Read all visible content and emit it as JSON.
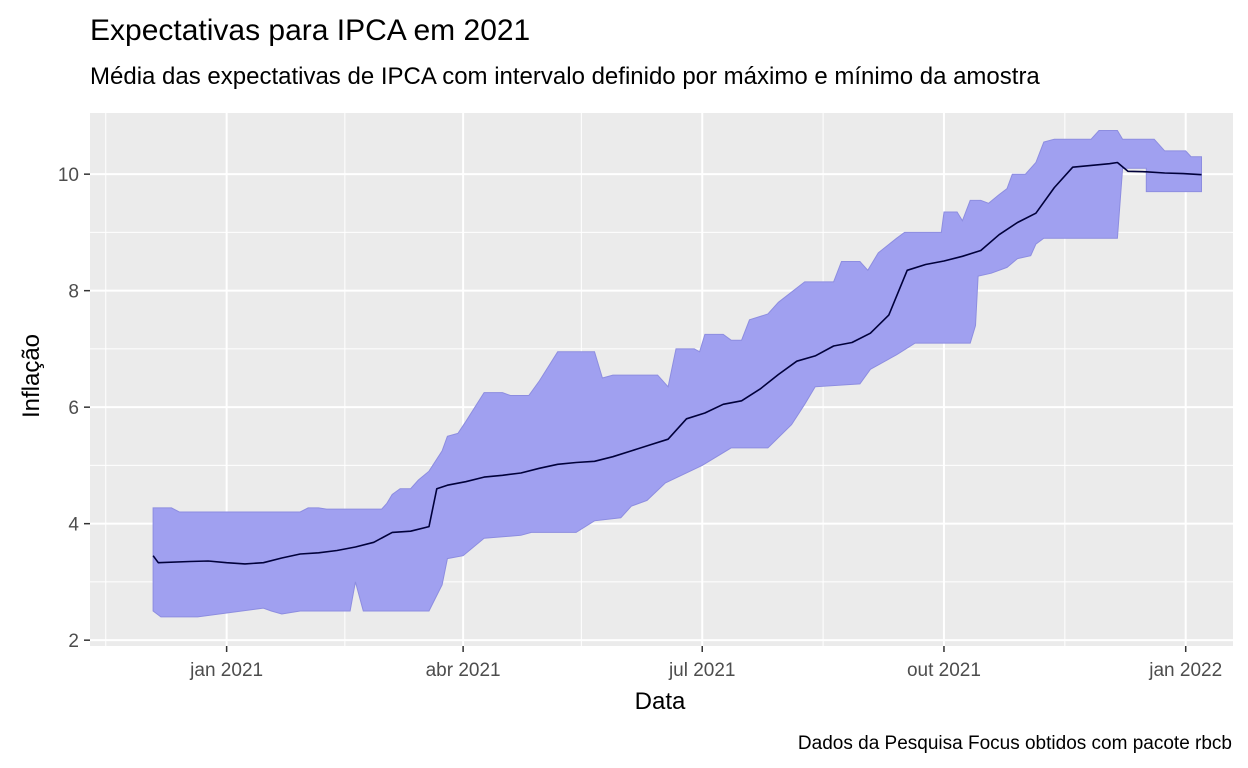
{
  "chart_data": {
    "type": "area",
    "title": "Expectativas para IPCA em 2021",
    "subtitle": "Média das expectativas de IPCA com intervalo definido por máximo e mínimo da amostra",
    "caption": "Dados da Pesquisa Focus obtidos com pacote rbcb",
    "xlabel": "Data",
    "ylabel": "Inflação",
    "xlim": [
      "2020-11-10",
      "2022-01-19"
    ],
    "ylim": [
      1.9,
      11.05
    ],
    "x_ticks": [
      {
        "date": "2021-01-01",
        "label": "jan 2021"
      },
      {
        "date": "2021-04-01",
        "label": "abr 2021"
      },
      {
        "date": "2021-07-01",
        "label": "jul 2021"
      },
      {
        "date": "2021-10-01",
        "label": "out 2021"
      },
      {
        "date": "2022-01-01",
        "label": "jan 2022"
      }
    ],
    "x_minor_ticks": [
      "2020-11-16",
      "2021-02-15",
      "2021-05-16",
      "2021-08-16",
      "2021-11-16"
    ],
    "y_ticks": [
      2,
      4,
      6,
      8,
      10
    ],
    "y_minor_ticks": [
      3,
      5,
      7,
      9
    ],
    "grid": true,
    "colors": {
      "ribbon_fill": "#a0a0f0",
      "ribbon_stroke": "#8d8de0",
      "mean_line": "#00003a",
      "panel": "#ebebeb",
      "grid": "#ffffff"
    },
    "series": [
      {
        "role": "ribbon",
        "upper": [
          [
            "2020-12-04",
            4.27
          ],
          [
            "2020-12-11",
            4.27
          ],
          [
            "2020-12-14",
            4.2
          ],
          [
            "2020-12-18",
            4.2
          ],
          [
            "2021-01-29",
            4.2
          ],
          [
            "2021-02-01",
            4.27
          ],
          [
            "2021-02-05",
            4.27
          ],
          [
            "2021-02-08",
            4.25
          ],
          [
            "2021-03-01",
            4.25
          ],
          [
            "2021-03-03",
            4.35
          ],
          [
            "2021-03-05",
            4.5
          ],
          [
            "2021-03-08",
            4.6
          ],
          [
            "2021-03-12",
            4.6
          ],
          [
            "2021-03-15",
            4.75
          ],
          [
            "2021-03-19",
            4.9
          ],
          [
            "2021-03-24",
            5.25
          ],
          [
            "2021-03-26",
            5.5
          ],
          [
            "2021-03-30",
            5.55
          ],
          [
            "2021-04-02",
            5.75
          ],
          [
            "2021-04-09",
            6.25
          ],
          [
            "2021-04-16",
            6.25
          ],
          [
            "2021-04-19",
            6.2
          ],
          [
            "2021-04-26",
            6.2
          ],
          [
            "2021-04-30",
            6.45
          ],
          [
            "2021-05-07",
            6.95
          ],
          [
            "2021-05-21",
            6.95
          ],
          [
            "2021-05-24",
            6.5
          ],
          [
            "2021-05-28",
            6.55
          ],
          [
            "2021-06-14",
            6.55
          ],
          [
            "2021-06-18",
            6.35
          ],
          [
            "2021-06-21",
            7.0
          ],
          [
            "2021-06-28",
            7.0
          ],
          [
            "2021-06-30",
            6.95
          ],
          [
            "2021-07-02",
            7.25
          ],
          [
            "2021-07-09",
            7.25
          ],
          [
            "2021-07-12",
            7.15
          ],
          [
            "2021-07-16",
            7.15
          ],
          [
            "2021-07-19",
            7.5
          ],
          [
            "2021-07-26",
            7.6
          ],
          [
            "2021-07-30",
            7.8
          ],
          [
            "2021-08-09",
            8.15
          ],
          [
            "2021-08-20",
            8.15
          ],
          [
            "2021-08-23",
            8.5
          ],
          [
            "2021-08-30",
            8.5
          ],
          [
            "2021-09-02",
            8.35
          ],
          [
            "2021-09-06",
            8.65
          ],
          [
            "2021-09-13",
            8.9
          ],
          [
            "2021-09-16",
            9.0
          ],
          [
            "2021-09-30",
            9.0
          ],
          [
            "2021-10-01",
            9.35
          ],
          [
            "2021-10-06",
            9.35
          ],
          [
            "2021-10-08",
            9.2
          ],
          [
            "2021-10-11",
            9.55
          ],
          [
            "2021-10-15",
            9.55
          ],
          [
            "2021-10-18",
            9.5
          ],
          [
            "2021-10-22",
            9.65
          ],
          [
            "2021-10-25",
            9.75
          ],
          [
            "2021-10-27",
            10.0
          ],
          [
            "2021-11-01",
            10.0
          ],
          [
            "2021-11-05",
            10.2
          ],
          [
            "2021-11-08",
            10.55
          ],
          [
            "2021-11-12",
            10.6
          ],
          [
            "2021-11-26",
            10.6
          ],
          [
            "2021-11-29",
            10.75
          ],
          [
            "2021-12-06",
            10.75
          ],
          [
            "2021-12-08",
            10.6
          ],
          [
            "2021-12-20",
            10.6
          ],
          [
            "2021-12-24",
            10.4
          ],
          [
            "2022-01-01",
            10.4
          ],
          [
            "2022-01-03",
            10.3
          ],
          [
            "2022-01-07",
            10.3
          ]
        ],
        "lower": [
          [
            "2022-01-07",
            9.7
          ],
          [
            "2021-12-17",
            9.7
          ],
          [
            "2021-12-17",
            10.1
          ],
          [
            "2021-12-08",
            10.1
          ],
          [
            "2021-12-06",
            8.9
          ],
          [
            "2021-11-08",
            8.9
          ],
          [
            "2021-11-05",
            8.8
          ],
          [
            "2021-11-03",
            8.6
          ],
          [
            "2021-10-29",
            8.55
          ],
          [
            "2021-10-25",
            8.4
          ],
          [
            "2021-10-19",
            8.3
          ],
          [
            "2021-10-14",
            8.25
          ],
          [
            "2021-10-13",
            7.4
          ],
          [
            "2021-10-11",
            7.1
          ],
          [
            "2021-09-20",
            7.1
          ],
          [
            "2021-09-13",
            6.9
          ],
          [
            "2021-09-03",
            6.65
          ],
          [
            "2021-08-30",
            6.4
          ],
          [
            "2021-08-13",
            6.35
          ],
          [
            "2021-08-09",
            6.05
          ],
          [
            "2021-08-04",
            5.7
          ],
          [
            "2021-07-26",
            5.3
          ],
          [
            "2021-07-12",
            5.3
          ],
          [
            "2021-07-01",
            5.0
          ],
          [
            "2021-06-17",
            4.7
          ],
          [
            "2021-06-10",
            4.4
          ],
          [
            "2021-06-04",
            4.3
          ],
          [
            "2021-05-31",
            4.1
          ],
          [
            "2021-05-21",
            4.05
          ],
          [
            "2021-05-14",
            3.85
          ],
          [
            "2021-04-27",
            3.85
          ],
          [
            "2021-04-23",
            3.8
          ],
          [
            "2021-04-09",
            3.75
          ],
          [
            "2021-04-01",
            3.45
          ],
          [
            "2021-03-26",
            3.4
          ],
          [
            "2021-03-24",
            2.95
          ],
          [
            "2021-03-19",
            2.5
          ],
          [
            "2021-02-22",
            2.5
          ],
          [
            "2021-02-19",
            3.0
          ],
          [
            "2021-02-17",
            2.5
          ],
          [
            "2021-01-29",
            2.5
          ],
          [
            "2021-01-22",
            2.45
          ],
          [
            "2021-01-18",
            2.5
          ],
          [
            "2021-01-15",
            2.55
          ],
          [
            "2020-12-21",
            2.4
          ],
          [
            "2020-12-07",
            2.4
          ],
          [
            "2020-12-04",
            2.5
          ]
        ]
      },
      {
        "role": "mean",
        "values": [
          [
            "2020-12-04",
            3.45
          ],
          [
            "2020-12-06",
            3.33
          ],
          [
            "2020-12-18",
            3.35
          ],
          [
            "2020-12-25",
            3.36
          ],
          [
            "2021-01-01",
            3.33
          ],
          [
            "2021-01-08",
            3.31
          ],
          [
            "2021-01-15",
            3.33
          ],
          [
            "2021-01-22",
            3.41
          ],
          [
            "2021-01-29",
            3.48
          ],
          [
            "2021-02-05",
            3.5
          ],
          [
            "2021-02-12",
            3.54
          ],
          [
            "2021-02-19",
            3.6
          ],
          [
            "2021-02-26",
            3.68
          ],
          [
            "2021-03-05",
            3.85
          ],
          [
            "2021-03-12",
            3.87
          ],
          [
            "2021-03-19",
            3.95
          ],
          [
            "2021-03-22",
            4.6
          ],
          [
            "2021-03-26",
            4.66
          ],
          [
            "2021-04-02",
            4.72
          ],
          [
            "2021-04-09",
            4.8
          ],
          [
            "2021-04-16",
            4.83
          ],
          [
            "2021-04-23",
            4.87
          ],
          [
            "2021-04-30",
            4.95
          ],
          [
            "2021-05-07",
            5.02
          ],
          [
            "2021-05-14",
            5.05
          ],
          [
            "2021-05-21",
            5.07
          ],
          [
            "2021-05-28",
            5.15
          ],
          [
            "2021-06-04",
            5.25
          ],
          [
            "2021-06-11",
            5.35
          ],
          [
            "2021-06-18",
            5.45
          ],
          [
            "2021-06-25",
            5.8
          ],
          [
            "2021-07-02",
            5.9
          ],
          [
            "2021-07-09",
            6.05
          ],
          [
            "2021-07-16",
            6.11
          ],
          [
            "2021-07-23",
            6.31
          ],
          [
            "2021-07-30",
            6.56
          ],
          [
            "2021-08-06",
            6.79
          ],
          [
            "2021-08-13",
            6.88
          ],
          [
            "2021-08-20",
            7.05
          ],
          [
            "2021-08-27",
            7.11
          ],
          [
            "2021-09-03",
            7.27
          ],
          [
            "2021-09-10",
            7.58
          ],
          [
            "2021-09-17",
            8.35
          ],
          [
            "2021-09-24",
            8.45
          ],
          [
            "2021-10-01",
            8.51
          ],
          [
            "2021-10-08",
            8.59
          ],
          [
            "2021-10-15",
            8.69
          ],
          [
            "2021-10-22",
            8.96
          ],
          [
            "2021-10-29",
            9.17
          ],
          [
            "2021-11-05",
            9.33
          ],
          [
            "2021-11-12",
            9.77
          ],
          [
            "2021-11-19",
            10.12
          ],
          [
            "2021-11-26",
            10.15
          ],
          [
            "2021-12-03",
            10.18
          ],
          [
            "2021-12-06",
            10.2
          ],
          [
            "2021-12-10",
            10.05
          ],
          [
            "2021-12-17",
            10.04
          ],
          [
            "2021-12-24",
            10.02
          ],
          [
            "2021-12-31",
            10.01
          ],
          [
            "2022-01-07",
            9.99
          ]
        ]
      }
    ]
  }
}
